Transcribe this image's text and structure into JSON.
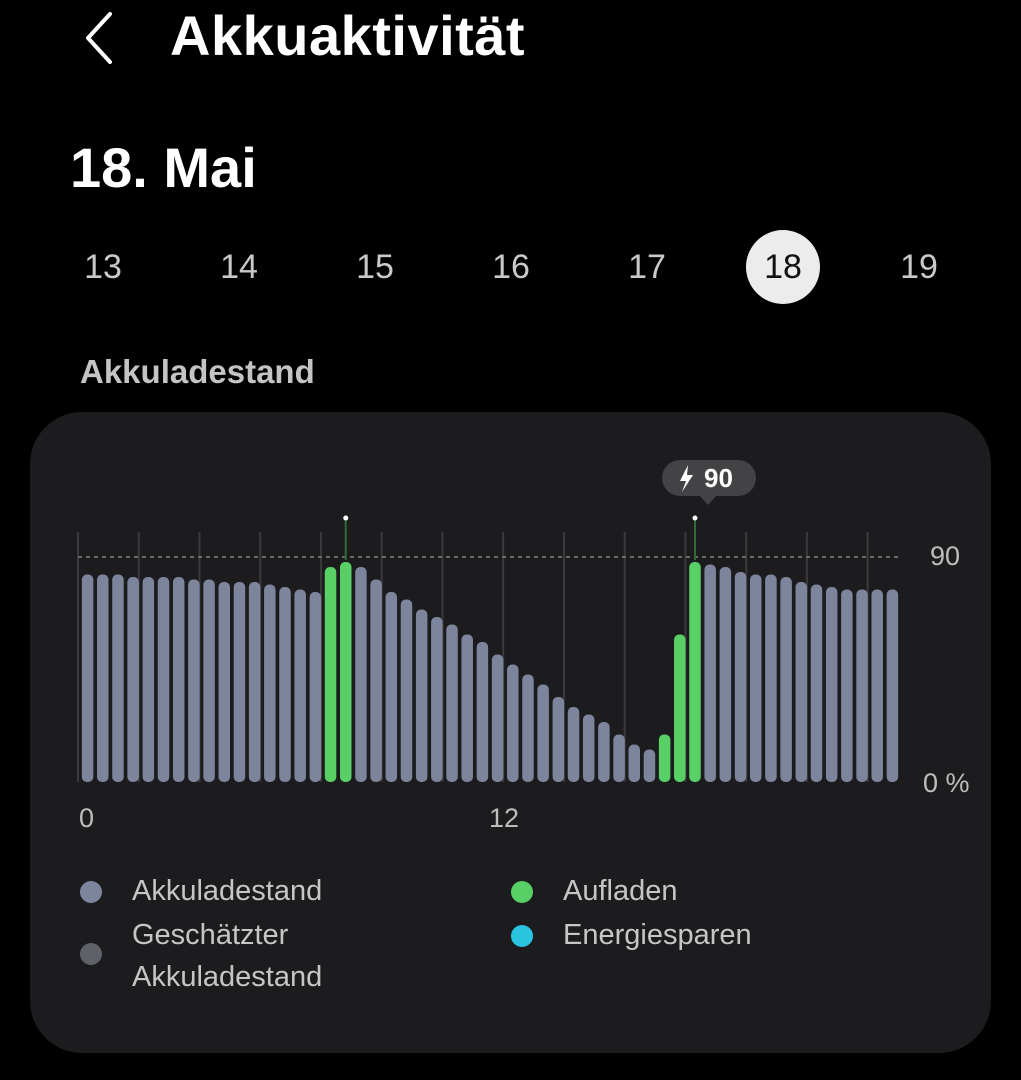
{
  "header": {
    "title": "Akkuaktivität"
  },
  "date": {
    "heading": "18. Mai"
  },
  "days": [
    {
      "label": "13",
      "selected": false
    },
    {
      "label": "14",
      "selected": false
    },
    {
      "label": "15",
      "selected": false
    },
    {
      "label": "16",
      "selected": false
    },
    {
      "label": "17",
      "selected": false
    },
    {
      "label": "18",
      "selected": true
    },
    {
      "label": "19",
      "selected": false
    }
  ],
  "section": {
    "label": "Akkuladestand"
  },
  "chart_data": {
    "type": "bar",
    "y_tick_labels": [
      "90",
      "0 %"
    ],
    "x_tick_labels": [
      "0",
      "12"
    ],
    "ylim": [
      0,
      100
    ],
    "reference_line": 90,
    "callout": {
      "value": "90",
      "icon": "bolt-icon"
    },
    "values": [
      83,
      83,
      83,
      82,
      82,
      82,
      82,
      81,
      81,
      80,
      80,
      80,
      79,
      78,
      77,
      76,
      86,
      88,
      86,
      81,
      76,
      73,
      69,
      66,
      63,
      59,
      56,
      51,
      47,
      43,
      39,
      34,
      30,
      27,
      24,
      19,
      15,
      13,
      19,
      59,
      88,
      87,
      86,
      84,
      83,
      83,
      82,
      80,
      79,
      78,
      77,
      77,
      77,
      77
    ],
    "charging": [
      16,
      17,
      38,
      39,
      40
    ],
    "legend": [
      {
        "label": "Akkuladestand",
        "color": "#7c859b"
      },
      {
        "label": "Geschätzter Akkuladestand",
        "color": "#5f6168"
      },
      {
        "label": "Aufladen",
        "color": "#58d065"
      },
      {
        "label": "Energiesparen",
        "color": "#2ac4e0"
      }
    ]
  },
  "colors": {
    "background": "#000000",
    "card": "#1c1c1e",
    "bar": "#7c859b",
    "charging": "#58d065",
    "selected_day_bg": "#ececec"
  }
}
